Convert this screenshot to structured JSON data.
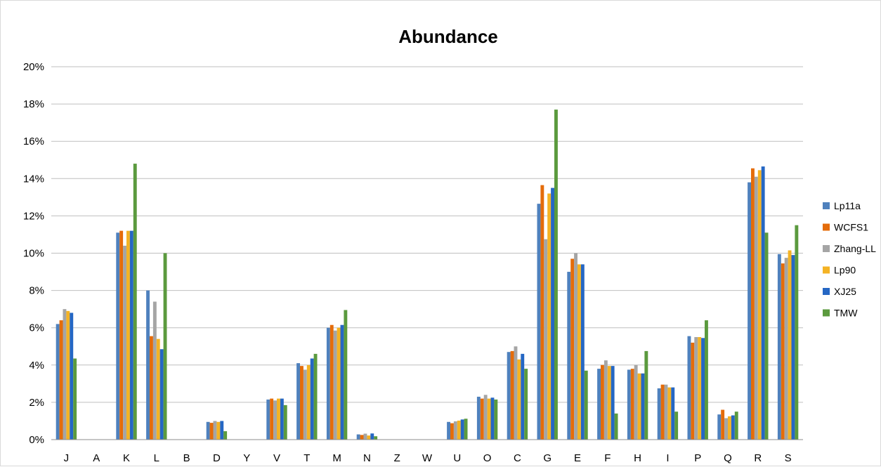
{
  "chart_data": {
    "type": "bar",
    "title": "Abundance",
    "xlabel": "",
    "ylabel": "",
    "ylim": [
      0,
      20
    ],
    "y_ticks": [
      0,
      2,
      4,
      6,
      8,
      10,
      12,
      14,
      16,
      18,
      20
    ],
    "y_tick_format": "percent",
    "grid": true,
    "legend_position": "right",
    "categories": [
      "J",
      "A",
      "K",
      "L",
      "B",
      "D",
      "Y",
      "V",
      "T",
      "M",
      "N",
      "Z",
      "W",
      "U",
      "O",
      "C",
      "G",
      "E",
      "F",
      "H",
      "I",
      "P",
      "Q",
      "R",
      "S"
    ],
    "series": [
      {
        "name": "Lp11a",
        "color": "#4f81bd",
        "values": [
          6.2,
          0,
          11.1,
          8.0,
          0,
          0.95,
          0,
          2.15,
          4.1,
          6.0,
          0.28,
          0,
          0,
          0.95,
          2.3,
          4.7,
          12.65,
          9.0,
          3.8,
          3.75,
          2.75,
          5.55,
          1.35,
          13.8,
          9.95
        ]
      },
      {
        "name": "WCFS1",
        "color": "#e46c0a",
        "values": [
          6.4,
          0,
          11.2,
          5.55,
          0,
          0.9,
          0,
          2.2,
          3.95,
          6.15,
          0.25,
          0,
          0,
          0.88,
          2.2,
          4.75,
          13.65,
          9.7,
          4.0,
          3.8,
          2.95,
          5.2,
          1.6,
          14.55,
          9.45
        ]
      },
      {
        "name": "Zhang-LL",
        "color": "#a5a5a5",
        "values": [
          7.0,
          0,
          10.4,
          7.4,
          0,
          1.0,
          0,
          2.1,
          3.75,
          5.85,
          0.32,
          0,
          0,
          0.98,
          2.4,
          5.0,
          10.75,
          10.0,
          4.25,
          4.0,
          2.95,
          5.5,
          1.15,
          14.1,
          9.75
        ]
      },
      {
        "name": "Lp90",
        "color": "#f4b324",
        "values": [
          6.9,
          0,
          11.2,
          5.4,
          0,
          0.95,
          0,
          2.2,
          4.0,
          6.0,
          0.22,
          0,
          0,
          1.02,
          2.2,
          4.3,
          13.2,
          9.4,
          3.95,
          3.55,
          2.8,
          5.5,
          1.25,
          14.45,
          10.15
        ]
      },
      {
        "name": "XJ25",
        "color": "#2567c4",
        "values": [
          6.8,
          0,
          11.2,
          4.85,
          0,
          1.0,
          0,
          2.2,
          4.35,
          6.15,
          0.33,
          0,
          0,
          1.08,
          2.25,
          4.6,
          13.5,
          9.4,
          3.95,
          3.55,
          2.8,
          5.45,
          1.3,
          14.65,
          9.9
        ]
      },
      {
        "name": "TMW",
        "color": "#5b9a3e",
        "values": [
          4.35,
          0,
          14.8,
          10.0,
          0,
          0.45,
          0,
          1.85,
          4.6,
          6.95,
          0.18,
          0,
          0,
          1.12,
          2.15,
          3.8,
          17.7,
          3.7,
          1.4,
          4.75,
          1.5,
          6.4,
          1.5,
          11.1,
          11.5
        ]
      }
    ]
  }
}
